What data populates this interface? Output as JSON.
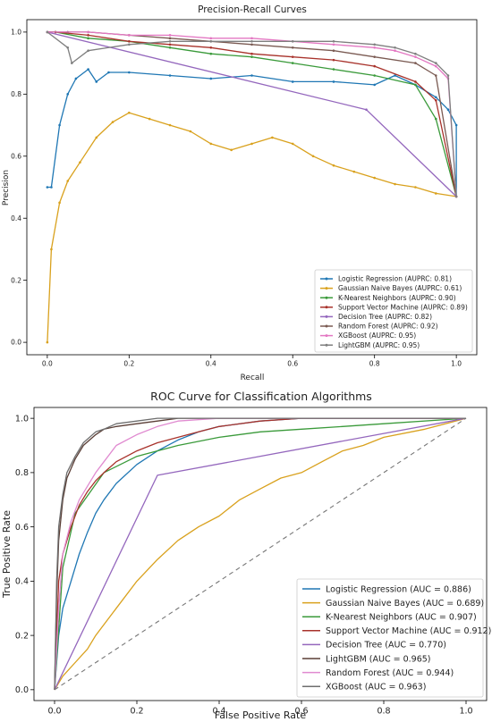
{
  "colors": {
    "logistic": "#1f77b4",
    "gaussian": "#d9a11d",
    "knn": "#3a9a3a",
    "svm": "#a8322b",
    "dtree": "#9467bd",
    "rf_pr": "#7a5a52",
    "xgb_pr": "#e377c2",
    "lgbm_pr": "#7f7f7f",
    "lgbm_roc": "#5a3e36",
    "rf_roc": "#e08ad0",
    "xgb_roc": "#6e6e6e",
    "chance": "#777777"
  },
  "chart_data": [
    {
      "type": "line",
      "title": "Precision-Recall Curves",
      "xlabel": "Recall",
      "ylabel": "Precision",
      "xlim": [
        -0.05,
        1.05
      ],
      "ylim": [
        -0.04,
        1.04
      ],
      "xticks": [
        "0.0",
        "0.2",
        "0.4",
        "0.6",
        "0.8",
        "1.0"
      ],
      "yticks": [
        "0.0",
        "0.2",
        "0.4",
        "0.6",
        "0.8",
        "1.0"
      ],
      "grid": false,
      "legend_position": "lower-right",
      "series": [
        {
          "name": "Logistic Regression (AUPRC: 0.81)",
          "color_key": "logistic",
          "marker": true,
          "x": [
            0,
            0.01,
            0.03,
            0.05,
            0.07,
            0.1,
            0.12,
            0.15,
            0.2,
            0.3,
            0.4,
            0.5,
            0.6,
            0.7,
            0.8,
            0.85,
            0.9,
            0.95,
            0.98,
            1.0,
            1.0
          ],
          "y": [
            0.5,
            0.5,
            0.7,
            0.8,
            0.85,
            0.88,
            0.84,
            0.87,
            0.87,
            0.86,
            0.85,
            0.86,
            0.84,
            0.84,
            0.83,
            0.86,
            0.83,
            0.79,
            0.75,
            0.7,
            0.47
          ]
        },
        {
          "name": "Gaussian Naive Bayes (AUPRC: 0.61)",
          "color_key": "gaussian",
          "marker": true,
          "x": [
            0,
            0.01,
            0.03,
            0.05,
            0.08,
            0.12,
            0.16,
            0.2,
            0.25,
            0.3,
            0.35,
            0.4,
            0.45,
            0.5,
            0.55,
            0.6,
            0.65,
            0.7,
            0.75,
            0.8,
            0.85,
            0.9,
            0.95,
            1.0
          ],
          "y": [
            0,
            0.3,
            0.45,
            0.52,
            0.58,
            0.66,
            0.71,
            0.74,
            0.72,
            0.7,
            0.68,
            0.64,
            0.62,
            0.64,
            0.66,
            0.64,
            0.6,
            0.57,
            0.55,
            0.53,
            0.51,
            0.5,
            0.48,
            0.47
          ]
        },
        {
          "name": "K-Nearest Neighbors (AUPRC: 0.90)",
          "color_key": "knn",
          "marker": true,
          "x": [
            0,
            0.02,
            0.1,
            0.2,
            0.3,
            0.4,
            0.5,
            0.6,
            0.7,
            0.8,
            0.9,
            0.95,
            1.0
          ],
          "y": [
            1.0,
            1.0,
            0.98,
            0.97,
            0.95,
            0.93,
            0.92,
            0.9,
            0.88,
            0.86,
            0.83,
            0.72,
            0.47
          ]
        },
        {
          "name": "Support Vector Machine (AUPRC: 0.89)",
          "color_key": "svm",
          "marker": true,
          "x": [
            0,
            0.02,
            0.1,
            0.2,
            0.3,
            0.4,
            0.5,
            0.6,
            0.7,
            0.8,
            0.9,
            0.95,
            1.0
          ],
          "y": [
            1.0,
            1.0,
            0.99,
            0.97,
            0.96,
            0.95,
            0.93,
            0.92,
            0.91,
            0.89,
            0.84,
            0.78,
            0.47
          ]
        },
        {
          "name": "Decision Tree (AUPRC: 0.82)",
          "color_key": "dtree",
          "marker": true,
          "x": [
            0,
            0.78,
            1.0
          ],
          "y": [
            1.0,
            0.75,
            0.47
          ]
        },
        {
          "name": "Random Forest (AUPRC: 0.92)",
          "color_key": "rf_pr",
          "marker": true,
          "x": [
            0,
            0.05,
            0.1,
            0.2,
            0.3,
            0.4,
            0.5,
            0.6,
            0.7,
            0.8,
            0.9,
            0.95,
            1.0
          ],
          "y": [
            1.0,
            1.0,
            1.0,
            0.99,
            0.98,
            0.97,
            0.96,
            0.95,
            0.94,
            0.92,
            0.9,
            0.86,
            0.47
          ]
        },
        {
          "name": "XGBoost (AUPRC: 0.95)",
          "color_key": "xgb_pr",
          "marker": true,
          "x": [
            0,
            0.1,
            0.2,
            0.3,
            0.4,
            0.5,
            0.6,
            0.7,
            0.8,
            0.85,
            0.9,
            0.95,
            0.98,
            1.0
          ],
          "y": [
            1.0,
            1.0,
            0.99,
            0.99,
            0.98,
            0.98,
            0.97,
            0.96,
            0.95,
            0.94,
            0.92,
            0.89,
            0.85,
            0.47
          ]
        },
        {
          "name": "LightGBM (AUPRC: 0.95)",
          "color_key": "lgbm_pr",
          "marker": true,
          "x": [
            0,
            0.05,
            0.06,
            0.1,
            0.2,
            0.3,
            0.4,
            0.5,
            0.6,
            0.7,
            0.8,
            0.85,
            0.9,
            0.95,
            0.98,
            1.0
          ],
          "y": [
            1.0,
            0.95,
            0.9,
            0.94,
            0.96,
            0.97,
            0.97,
            0.97,
            0.97,
            0.97,
            0.96,
            0.95,
            0.93,
            0.9,
            0.86,
            0.47
          ]
        }
      ]
    },
    {
      "type": "line",
      "title": "ROC Curve for Classification Algorithms",
      "xlabel": "False Positive Rate",
      "ylabel": "True Positive Rate",
      "xlim": [
        -0.05,
        1.05
      ],
      "ylim": [
        -0.04,
        1.04
      ],
      "xticks": [
        "0.0",
        "0.2",
        "0.4",
        "0.6",
        "0.8",
        "1.0"
      ],
      "yticks": [
        "0.0",
        "0.2",
        "0.4",
        "0.6",
        "0.8",
        "1.0"
      ],
      "grid": false,
      "legend_position": "lower-right",
      "series": [
        {
          "name": "Logistic Regression (AUC = 0.886)",
          "color_key": "logistic",
          "x": [
            0,
            0.01,
            0.02,
            0.04,
            0.06,
            0.08,
            0.1,
            0.12,
            0.15,
            0.2,
            0.25,
            0.3,
            0.35,
            0.4,
            0.5,
            0.6,
            0.8,
            1.0
          ],
          "y": [
            0,
            0.2,
            0.3,
            0.4,
            0.5,
            0.58,
            0.65,
            0.7,
            0.76,
            0.83,
            0.88,
            0.92,
            0.95,
            0.97,
            0.99,
            1.0,
            1.0,
            1.0
          ]
        },
        {
          "name": "Gaussian Naive Bayes (AUC = 0.689)",
          "color_key": "gaussian",
          "x": [
            0,
            0.02,
            0.05,
            0.08,
            0.1,
            0.15,
            0.2,
            0.25,
            0.3,
            0.35,
            0.4,
            0.45,
            0.5,
            0.55,
            0.6,
            0.65,
            0.7,
            0.75,
            0.8,
            0.9,
            1.0
          ],
          "y": [
            0,
            0.05,
            0.1,
            0.15,
            0.2,
            0.3,
            0.4,
            0.48,
            0.55,
            0.6,
            0.64,
            0.7,
            0.74,
            0.78,
            0.8,
            0.84,
            0.88,
            0.9,
            0.93,
            0.96,
            1.0
          ]
        },
        {
          "name": "K-Nearest Neighbors (AUC = 0.907)",
          "color_key": "knn",
          "x": [
            0,
            0.02,
            0.05,
            0.12,
            0.2,
            0.3,
            0.4,
            0.5,
            0.6,
            0.7,
            0.8,
            1.0
          ],
          "y": [
            0,
            0.45,
            0.65,
            0.8,
            0.86,
            0.9,
            0.93,
            0.95,
            0.96,
            0.97,
            0.98,
            1.0
          ]
        },
        {
          "name": "Support Vector Machine (AUC = 0.912)",
          "color_key": "svm",
          "x": [
            0,
            0.01,
            0.02,
            0.04,
            0.06,
            0.08,
            0.1,
            0.12,
            0.15,
            0.2,
            0.25,
            0.3,
            0.35,
            0.4,
            0.5,
            0.6,
            1.0
          ],
          "y": [
            0,
            0.4,
            0.5,
            0.6,
            0.68,
            0.73,
            0.77,
            0.8,
            0.84,
            0.88,
            0.91,
            0.93,
            0.95,
            0.97,
            0.99,
            1.0,
            1.0
          ]
        },
        {
          "name": "Decision Tree (AUC = 0.770)",
          "color_key": "dtree",
          "x": [
            0,
            0.25,
            1.0
          ],
          "y": [
            0,
            0.79,
            1.0
          ]
        },
        {
          "name": "LightGBM (AUC = 0.965)",
          "color_key": "lgbm_roc",
          "x": [
            0,
            0.005,
            0.01,
            0.02,
            0.03,
            0.05,
            0.07,
            0.1,
            0.12,
            0.15,
            0.2,
            0.25,
            0.3,
            0.4,
            0.5,
            1.0
          ],
          "y": [
            0,
            0.35,
            0.55,
            0.7,
            0.78,
            0.85,
            0.9,
            0.94,
            0.96,
            0.97,
            0.98,
            0.99,
            1.0,
            1.0,
            1.0,
            1.0
          ]
        },
        {
          "name": "Random Forest (AUC = 0.944)",
          "color_key": "rf_roc",
          "x": [
            0,
            0.01,
            0.02,
            0.04,
            0.06,
            0.08,
            0.1,
            0.12,
            0.15,
            0.2,
            0.25,
            0.3,
            0.4,
            0.5,
            1.0
          ],
          "y": [
            0,
            0.3,
            0.5,
            0.62,
            0.7,
            0.75,
            0.8,
            0.84,
            0.9,
            0.94,
            0.97,
            0.99,
            1.0,
            1.0,
            1.0
          ]
        },
        {
          "name": "XGBoost (AUC = 0.963)",
          "color_key": "xgb_roc",
          "x": [
            0,
            0.005,
            0.01,
            0.02,
            0.03,
            0.05,
            0.07,
            0.1,
            0.12,
            0.15,
            0.2,
            0.25,
            0.3,
            0.4,
            1.0
          ],
          "y": [
            0,
            0.4,
            0.6,
            0.72,
            0.8,
            0.86,
            0.91,
            0.95,
            0.96,
            0.98,
            0.99,
            1.0,
            1.0,
            1.0,
            1.0
          ]
        },
        {
          "name": "",
          "color_key": "chance",
          "dashed": true,
          "legend": false,
          "x": [
            0,
            1
          ],
          "y": [
            0,
            1
          ]
        }
      ]
    }
  ]
}
